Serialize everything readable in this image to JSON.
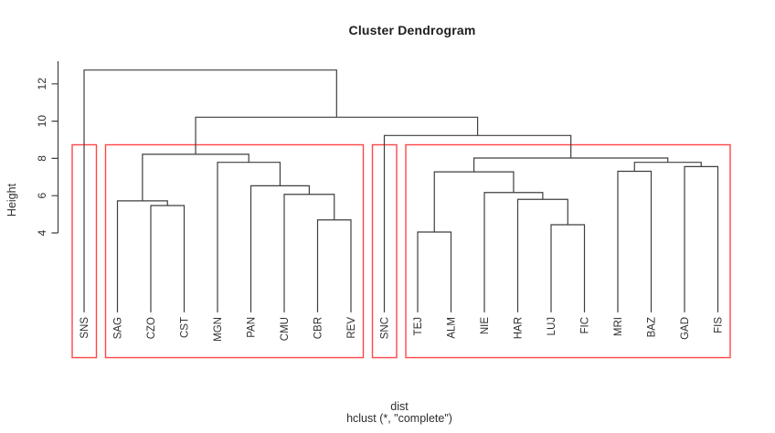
{
  "chart_data": {
    "type": "dendrogram",
    "title": "Cluster Dendrogram",
    "ylabel": "Height",
    "xlabel": "dist",
    "subtitle": "hclust (*, \"complete\")",
    "yticks": [
      4,
      6,
      8,
      10,
      12
    ],
    "ylim_shown": [
      4,
      13.2
    ],
    "grid": false,
    "leaves": [
      "SNS",
      "SAG",
      "CZO",
      "CST",
      "MGN",
      "PAN",
      "CMU",
      "CBR",
      "REV",
      "SNC",
      "TEJ",
      "ALM",
      "NIE",
      "HAR",
      "LUJ",
      "FIC",
      "MRI",
      "BAZ",
      "GAD",
      "FIS"
    ],
    "tree": {
      "h": 12.74,
      "children": [
        {
          "leaf": "SNS"
        },
        {
          "h": 10.21,
          "children": [
            {
              "h": 8.22,
              "children": [
                {
                  "h": 5.72,
                  "children": [
                    {
                      "leaf": "SAG"
                    },
                    {
                      "h": 5.47,
                      "children": [
                        {
                          "leaf": "CZO"
                        },
                        {
                          "leaf": "CST"
                        }
                      ]
                    }
                  ]
                },
                {
                  "h": 7.79,
                  "children": [
                    {
                      "leaf": "MGN"
                    },
                    {
                      "h": 6.53,
                      "children": [
                        {
                          "leaf": "PAN"
                        },
                        {
                          "h": 6.07,
                          "children": [
                            {
                              "leaf": "CMU"
                            },
                            {
                              "h": 4.7,
                              "children": [
                                {
                                  "leaf": "CBR"
                                },
                                {
                                  "leaf": "REV"
                                }
                              ]
                            }
                          ]
                        }
                      ]
                    }
                  ]
                }
              ]
            },
            {
              "h": 9.23,
              "children": [
                {
                  "leaf": "SNC"
                },
                {
                  "h": 8.02,
                  "children": [
                    {
                      "h": 7.28,
                      "children": [
                        {
                          "h": 4.05,
                          "children": [
                            {
                              "leaf": "TEJ"
                            },
                            {
                              "leaf": "ALM"
                            }
                          ]
                        },
                        {
                          "h": 6.17,
                          "children": [
                            {
                              "leaf": "NIE"
                            },
                            {
                              "h": 5.8,
                              "children": [
                                {
                                  "leaf": "HAR"
                                },
                                {
                                  "h": 4.44,
                                  "children": [
                                    {
                                      "leaf": "LUJ"
                                    },
                                    {
                                      "leaf": "FIC"
                                    }
                                  ]
                                }
                              ]
                            }
                          ]
                        }
                      ]
                    },
                    {
                      "h": 7.79,
                      "children": [
                        {
                          "h": 7.31,
                          "children": [
                            {
                              "leaf": "MRI"
                            },
                            {
                              "leaf": "BAZ"
                            }
                          ]
                        },
                        {
                          "h": 7.56,
                          "children": [
                            {
                              "leaf": "GAD"
                            },
                            {
                              "leaf": "FIS"
                            }
                          ]
                        }
                      ]
                    }
                  ]
                }
              ]
            }
          ]
        }
      ]
    },
    "clusters": [
      {
        "leaves": [
          "SNS"
        ]
      },
      {
        "leaves": [
          "SAG",
          "CZO",
          "CST",
          "MGN",
          "PAN",
          "CMU",
          "CBR",
          "REV"
        ]
      },
      {
        "leaves": [
          "SNC"
        ]
      },
      {
        "leaves": [
          "TEJ",
          "ALM",
          "NIE",
          "HAR",
          "LUJ",
          "FIC",
          "MRI",
          "BAZ",
          "GAD",
          "FIS"
        ]
      }
    ],
    "colors": {
      "line": "#3f3f3f",
      "cluster_box": "#ff4646",
      "text": "#2e2e2e"
    }
  }
}
